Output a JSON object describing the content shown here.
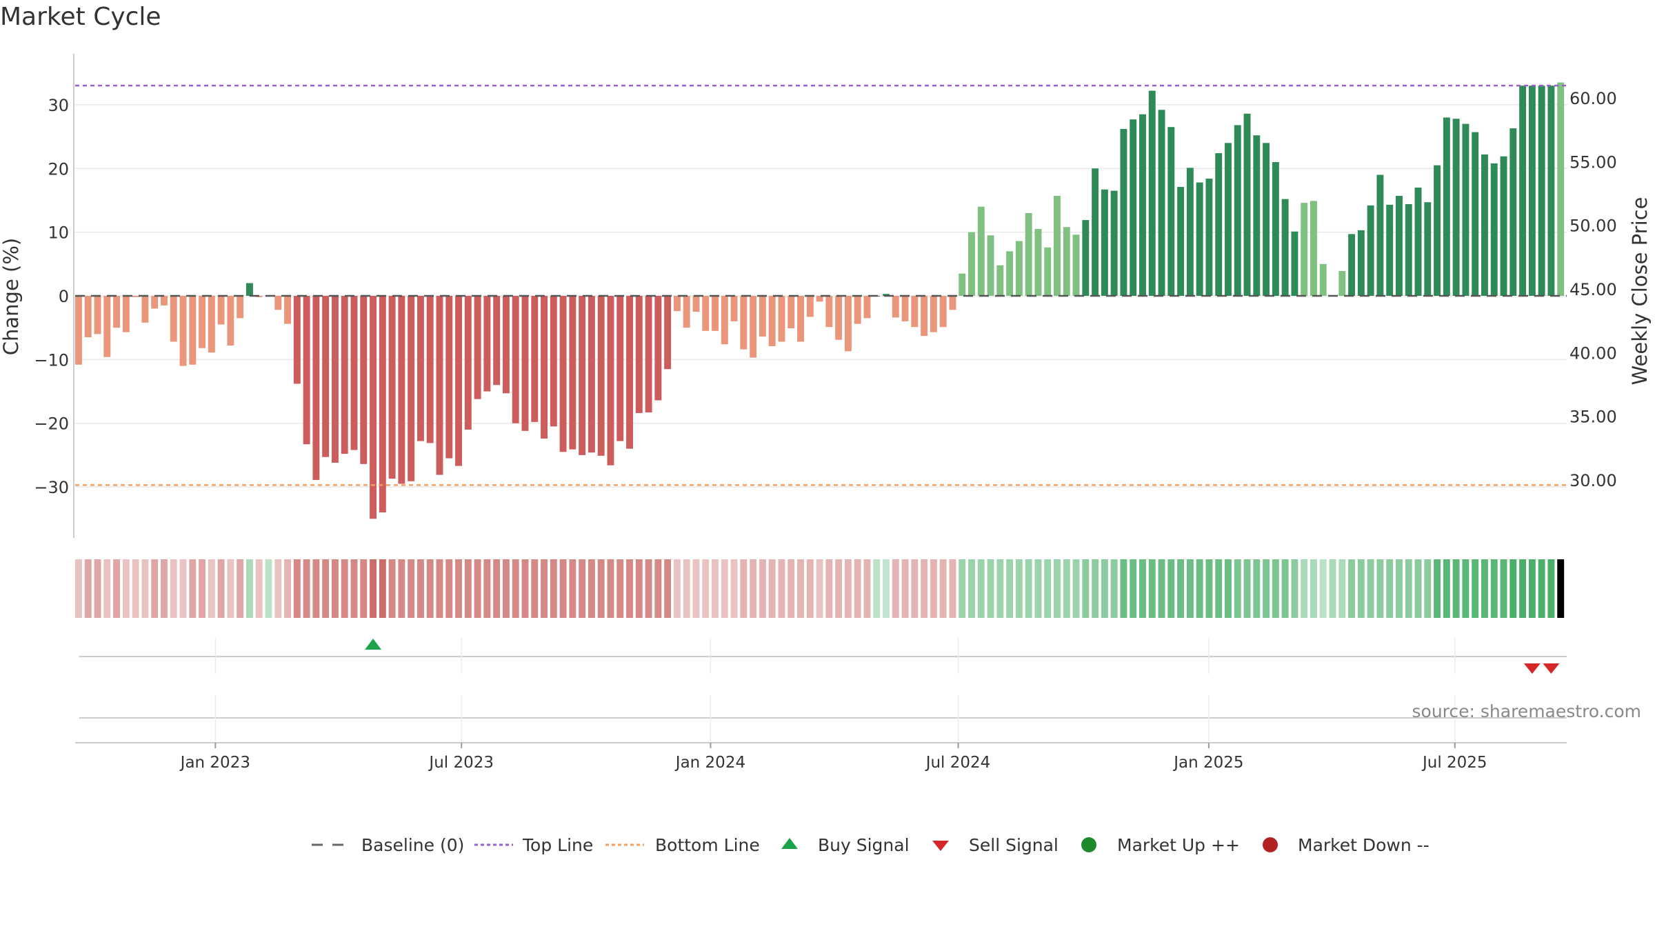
{
  "chart_data": {
    "type": "bar",
    "title": "Market Cycle",
    "ylabel": "Change (%)",
    "y2label": "Weekly Close Price",
    "source": "source: sharemaestro.com",
    "ylim": [
      -38,
      38
    ],
    "y_ticks": [
      30,
      20,
      10,
      0,
      -10,
      -20,
      -30
    ],
    "y2_ticks": [
      "60.00",
      "55.00",
      "50.00",
      "45.00",
      "40.00",
      "35.00",
      "30.00"
    ],
    "x_ticks": [
      "Jan 2023",
      "Jul 2023",
      "Jan 2024",
      "Jul 2024",
      "Jan 2025",
      "Jul 2025"
    ],
    "top_line": 33,
    "bottom_line": -29.7,
    "grid": "horizontal",
    "legend_position": "bottom",
    "legend": [
      "Baseline (0)",
      "Top Line",
      "Bottom Line",
      "Buy Signal",
      "Sell Signal",
      "Market Up ++",
      "Market Down --"
    ],
    "colors": {
      "up_dark": "#2e8b57",
      "up_light": "#80c080",
      "down_dark": "#cd5c5c",
      "down_light": "#e9967a",
      "top_line": "#9a5fc9",
      "bottom_line": "#f0a060",
      "buy": "#1ea34a",
      "sell": "#d62728",
      "market_up": "#1e8a2e",
      "market_down": "#b22222"
    },
    "series": [
      {
        "values": [
          -10.8,
          -6.5,
          -6,
          -9.6,
          -5,
          -5.7,
          -0.2,
          -4.2,
          -2,
          -1.5,
          -7.2,
          -11,
          -10.8,
          -8.2,
          -8.9,
          -4.5,
          -7.8,
          -3.5,
          2,
          -0.2,
          0,
          -2.2,
          -4.4,
          -13.8,
          -23.3,
          -28.9,
          -25.3,
          -26.2,
          -24.8,
          -24.2,
          -26.4,
          -35,
          -34,
          -28.7,
          -29.5,
          -29.1,
          -22.8,
          -23.1,
          -28.1,
          -25.5,
          -26.7,
          -21,
          -16.2,
          -15,
          -14,
          -15.3,
          -20,
          -21.2,
          -19.8,
          -22.4,
          -20.5,
          -24.5,
          -24.1,
          -25,
          -24.6,
          -25.1,
          -26.6,
          -22.8,
          -24,
          -18.4,
          -18.3,
          -16.4,
          -11.5,
          -2.4,
          -5,
          -2.5,
          -5.5,
          -5.5,
          -7.6,
          -4,
          -8.4,
          -9.7,
          -6.4,
          -7.9,
          -7.2,
          -5.1,
          -7.2,
          -3.3,
          -0.9,
          -4.9,
          -6.9,
          -8.7,
          -4.4,
          -3.5,
          0,
          0.3,
          -3.4,
          -4,
          -4.9,
          -6.3,
          -5.7,
          -4.9,
          -2.2,
          3.5,
          10,
          14,
          9.5,
          4.8,
          7,
          8.6,
          13,
          10.5,
          7.6,
          15.7,
          10.8,
          9.6,
          11.9,
          20,
          16.7,
          16.5,
          26.2,
          27.7,
          28.5,
          32.2,
          29.2,
          26.5,
          17.1,
          20.1,
          17.8,
          18.4,
          22.4,
          24,
          26.8,
          28.6,
          25.2,
          24,
          21,
          15.2,
          10.1,
          14.6,
          14.9,
          5,
          0,
          3.9,
          9.7,
          10.3,
          14.2,
          19,
          14.3,
          15.7,
          14.4,
          17,
          14.7,
          20.5,
          28,
          27.8,
          27,
          25.7,
          22.2,
          20.8,
          21.9,
          26.3,
          33,
          33,
          33,
          33,
          33.5
        ],
        "mood": [
          0.2,
          0.4,
          0.4,
          0.2,
          0.4,
          0.2,
          0.2,
          0.2,
          0.4,
          0.4,
          0.2,
          0.2,
          0.4,
          0.4,
          0.2,
          0.4,
          0.2,
          0.4,
          0.3,
          0.2,
          0.2,
          0.2,
          0.3,
          0.6,
          0.6,
          0.6,
          0.6,
          0.6,
          0.6,
          0.6,
          0.6,
          0.8,
          0.8,
          0.6,
          0.6,
          0.6,
          0.6,
          0.6,
          0.6,
          0.6,
          0.6,
          0.6,
          0.6,
          0.6,
          0.6,
          0.6,
          0.6,
          0.6,
          0.6,
          0.6,
          0.6,
          0.6,
          0.6,
          0.6,
          0.6,
          0.6,
          0.6,
          0.6,
          0.6,
          0.6,
          0.6,
          0.6,
          0.6,
          0.2,
          0.2,
          0.2,
          0.2,
          0.2,
          0.2,
          0.2,
          0.3,
          0.3,
          0.3,
          0.3,
          0.3,
          0.3,
          0.3,
          0.3,
          0.2,
          0.3,
          0.3,
          0.3,
          0.3,
          0.3,
          0.2,
          0.15,
          0.3,
          0.3,
          0.3,
          0.3,
          0.3,
          0.3,
          0.3,
          0.4,
          0.4,
          0.4,
          0.4,
          0.4,
          0.4,
          0.4,
          0.4,
          0.4,
          0.4,
          0.4,
          0.4,
          0.4,
          0.5,
          0.5,
          0.5,
          0.5,
          0.7,
          0.7,
          0.7,
          0.7,
          0.7,
          0.7,
          0.7,
          0.7,
          0.7,
          0.7,
          0.7,
          0.7,
          0.6,
          0.6,
          0.6,
          0.6,
          0.6,
          0.6,
          0.5,
          0.3,
          0.3,
          0.2,
          0.3,
          0.3,
          0.5,
          0.5,
          0.5,
          0.5,
          0.5,
          0.5,
          0.5,
          0.5,
          0.5,
          0.8,
          0.8,
          0.8,
          0.8,
          0.8,
          0.8,
          0.8,
          0.8,
          0.9,
          0.9,
          0.9,
          0.9,
          0.9
        ]
      }
    ],
    "buy_signals": [
      31
    ],
    "sell_signals": [
      153,
      155
    ]
  }
}
